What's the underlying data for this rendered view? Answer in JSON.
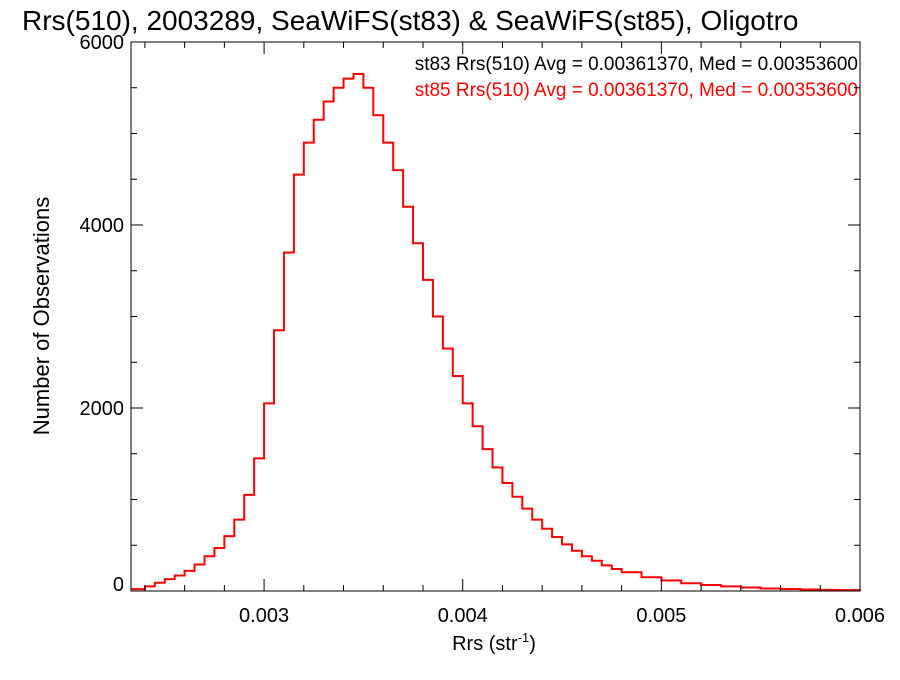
{
  "chart_data": {
    "type": "histogram-step",
    "title": "Rrs(510), 2003289, SeaWiFS(st83) & SeaWiFS(st85), Oligotro",
    "xlabel_main": "Rrs (str",
    "xlabel_sup": "-1",
    "xlabel_close": ")",
    "ylabel": "Number of Observations",
    "xlim": [
      0.00233,
      0.006
    ],
    "ylim": [
      0,
      6000
    ],
    "x_ticks": [
      0.003,
      0.004,
      0.005,
      0.006
    ],
    "x_tick_labels": [
      "0.003",
      "0.004",
      "0.005",
      "0.006"
    ],
    "y_ticks": [
      0,
      2000,
      4000,
      6000
    ],
    "y_tick_labels": [
      "0",
      "2000",
      "4000",
      "6000"
    ],
    "annotations": [
      {
        "text": "st83 Rrs(510) Avg = 0.00361370, Med = 0.00353600",
        "color": "#000000"
      },
      {
        "text": "st85 Rrs(510) Avg = 0.00361370, Med = 0.00353600",
        "color": "#ff0000"
      }
    ],
    "series": [
      {
        "color": "#ff0000",
        "x": [
          0.00233,
          0.0024,
          0.00245,
          0.0025,
          0.00255,
          0.0026,
          0.00265,
          0.0027,
          0.00275,
          0.0028,
          0.00285,
          0.0029,
          0.00295,
          0.003,
          0.00305,
          0.0031,
          0.00315,
          0.0032,
          0.00325,
          0.0033,
          0.00335,
          0.0034,
          0.00345,
          0.0035,
          0.00355,
          0.0036,
          0.00365,
          0.0037,
          0.00375,
          0.0038,
          0.00385,
          0.0039,
          0.00395,
          0.004,
          0.00405,
          0.0041,
          0.00415,
          0.0042,
          0.00425,
          0.0043,
          0.00435,
          0.0044,
          0.00445,
          0.0045,
          0.00455,
          0.0046,
          0.00465,
          0.0047,
          0.00475,
          0.0048,
          0.0049,
          0.005,
          0.0051,
          0.0052,
          0.0053,
          0.0054,
          0.0055,
          0.0056,
          0.0057,
          0.0058,
          0.0059,
          0.006
        ],
        "y": [
          20,
          50,
          90,
          130,
          170,
          220,
          290,
          380,
          470,
          600,
          780,
          1050,
          1450,
          2050,
          2850,
          3700,
          4550,
          4900,
          5150,
          5350,
          5500,
          5600,
          5650,
          5500,
          5200,
          4900,
          4600,
          4200,
          3800,
          3400,
          3000,
          2650,
          2350,
          2050,
          1800,
          1550,
          1350,
          1180,
          1030,
          900,
          780,
          680,
          590,
          510,
          440,
          380,
          330,
          280,
          240,
          205,
          150,
          115,
          85,
          65,
          50,
          38,
          28,
          22,
          16,
          12,
          9,
          6
        ]
      }
    ]
  }
}
